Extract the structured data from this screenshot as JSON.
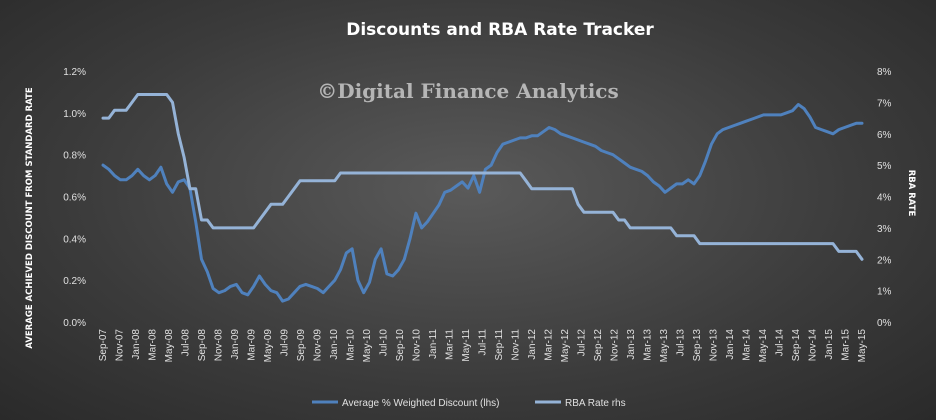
{
  "chart_data": {
    "type": "line",
    "title": "Discounts  and RBA Rate Tracker",
    "watermark": "©Digital Finance Analytics",
    "ylabel_left": "AVERAGE ACHIEVED DISCOUNT FROM STANDARD RATE",
    "ylabel_right": "RBA RATE",
    "yticks_left": [
      "0.0%",
      "0.2%",
      "0.4%",
      "0.6%",
      "0.8%",
      "1.0%",
      "1.2%"
    ],
    "yticks_right": [
      "0%",
      "1%",
      "2%",
      "3%",
      "4%",
      "5%",
      "6%",
      "7%",
      "8%"
    ],
    "ylim_left": [
      0,
      1.2
    ],
    "ylim_right": [
      0,
      8
    ],
    "x_tick_labels": [
      "Sep-07",
      "Nov-07",
      "Jan-08",
      "Mar-08",
      "May-08",
      "Jul-08",
      "Sep-08",
      "Nov-08",
      "Jan-09",
      "Mar-09",
      "May-09",
      "Jul-09",
      "Sep-09",
      "Nov-09",
      "Jan-10",
      "Mar-10",
      "May-10",
      "Jul-10",
      "Sep-10",
      "Nov-10",
      "Jan-11",
      "Mar-11",
      "May-11",
      "Jul-11",
      "Sep-11",
      "Nov-11",
      "Jan-12",
      "Mar-12",
      "May-12",
      "Jul-12",
      "Sep-12",
      "Nov-12",
      "Jan-13",
      "Mar-13",
      "May-13",
      "Jul-13",
      "Sep-13",
      "Nov-13",
      "Jan-14",
      "Mar-14",
      "May-14",
      "Jul-14",
      "Sep-14",
      "Nov-14",
      "Jan-15",
      "Mar-15",
      "May-15"
    ],
    "grid": false,
    "legend_position": "bottom",
    "series": [
      {
        "name": "Average % Weighted Discount (lhs)",
        "axis": "left",
        "color": "#4f81bd",
        "values": [
          0.75,
          0.73,
          0.7,
          0.68,
          0.68,
          0.7,
          0.73,
          0.7,
          0.68,
          0.7,
          0.74,
          0.66,
          0.62,
          0.67,
          0.68,
          0.64,
          0.48,
          0.3,
          0.24,
          0.16,
          0.14,
          0.15,
          0.17,
          0.18,
          0.14,
          0.13,
          0.17,
          0.22,
          0.18,
          0.15,
          0.14,
          0.1,
          0.11,
          0.14,
          0.17,
          0.18,
          0.17,
          0.16,
          0.14,
          0.17,
          0.2,
          0.25,
          0.33,
          0.35,
          0.2,
          0.14,
          0.19,
          0.3,
          0.35,
          0.23,
          0.22,
          0.25,
          0.3,
          0.4,
          0.52,
          0.45,
          0.48,
          0.52,
          0.56,
          0.62,
          0.63,
          0.65,
          0.67,
          0.64,
          0.7,
          0.62,
          0.73,
          0.75,
          0.81,
          0.85,
          0.86,
          0.87,
          0.88,
          0.88,
          0.89,
          0.89,
          0.91,
          0.93,
          0.92,
          0.9,
          0.89,
          0.88,
          0.87,
          0.86,
          0.85,
          0.84,
          0.82,
          0.81,
          0.8,
          0.78,
          0.76,
          0.74,
          0.73,
          0.72,
          0.7,
          0.67,
          0.65,
          0.62,
          0.64,
          0.66,
          0.66,
          0.68,
          0.66,
          0.7,
          0.77,
          0.85,
          0.9,
          0.92,
          0.93,
          0.94,
          0.95,
          0.96,
          0.97,
          0.98,
          0.99,
          0.99,
          0.99,
          0.99,
          1.0,
          1.01,
          1.04,
          1.02,
          0.98,
          0.93,
          0.92,
          0.91,
          0.9,
          0.92,
          0.93,
          0.94,
          0.95,
          0.95
        ]
      },
      {
        "name": "RBA Rate rhs",
        "axis": "right",
        "color": "#95b3d7",
        "values": [
          6.5,
          6.5,
          6.75,
          6.75,
          6.75,
          7.0,
          7.25,
          7.25,
          7.25,
          7.25,
          7.25,
          7.25,
          7.0,
          6.0,
          5.25,
          4.25,
          4.25,
          3.25,
          3.25,
          3.0,
          3.0,
          3.0,
          3.0,
          3.0,
          3.0,
          3.0,
          3.0,
          3.25,
          3.5,
          3.75,
          3.75,
          3.75,
          4.0,
          4.25,
          4.5,
          4.5,
          4.5,
          4.5,
          4.5,
          4.5,
          4.5,
          4.75,
          4.75,
          4.75,
          4.75,
          4.75,
          4.75,
          4.75,
          4.75,
          4.75,
          4.75,
          4.75,
          4.75,
          4.75,
          4.75,
          4.75,
          4.75,
          4.75,
          4.75,
          4.75,
          4.75,
          4.75,
          4.75,
          4.75,
          4.75,
          4.75,
          4.75,
          4.75,
          4.75,
          4.75,
          4.75,
          4.75,
          4.75,
          4.5,
          4.25,
          4.25,
          4.25,
          4.25,
          4.25,
          4.25,
          4.25,
          4.25,
          3.75,
          3.5,
          3.5,
          3.5,
          3.5,
          3.5,
          3.5,
          3.25,
          3.25,
          3.0,
          3.0,
          3.0,
          3.0,
          3.0,
          3.0,
          3.0,
          3.0,
          2.75,
          2.75,
          2.75,
          2.75,
          2.5,
          2.5,
          2.5,
          2.5,
          2.5,
          2.5,
          2.5,
          2.5,
          2.5,
          2.5,
          2.5,
          2.5,
          2.5,
          2.5,
          2.5,
          2.5,
          2.5,
          2.5,
          2.5,
          2.5,
          2.5,
          2.5,
          2.5,
          2.5,
          2.25,
          2.25,
          2.25,
          2.25,
          2.0
        ]
      }
    ]
  }
}
